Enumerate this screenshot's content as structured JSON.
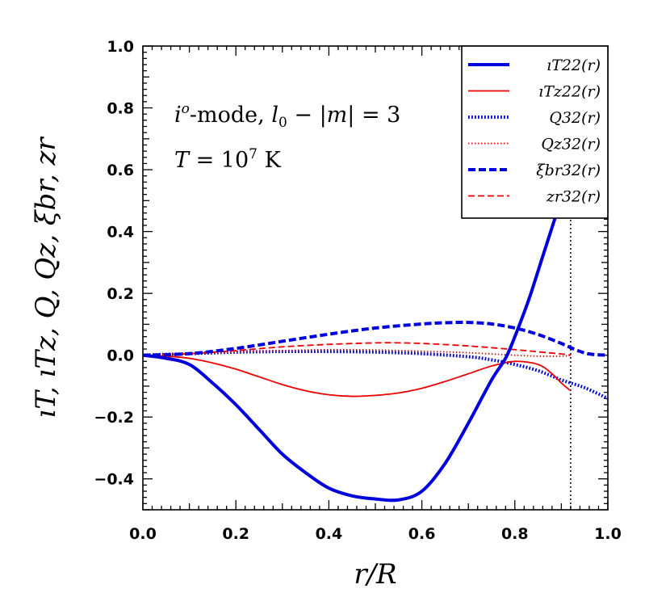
{
  "chart_data": {
    "type": "line",
    "xlabel": "r/R",
    "ylabel": "ıT, ıTz, Q, Qz, ξbr, zr",
    "xlim": [
      0.0,
      1.0
    ],
    "ylim": [
      -0.5,
      1.0
    ],
    "x_ticks": [
      "0.0",
      "0.2",
      "0.4",
      "0.6",
      "0.8",
      "1.0"
    ],
    "y_ticks": [
      "−0.4",
      "−0.2",
      "0.0",
      "0.2",
      "0.4",
      "0.6",
      "0.8",
      "1.0"
    ],
    "annotations": [
      "i^o-mode, l0 − |m| = 3",
      "T = 10^7 K"
    ],
    "vertical_line_x": 0.92,
    "legend_position": "top-right",
    "grid": false,
    "series": [
      {
        "name": "ıT22(r)",
        "color": "#0000dd",
        "style": "solid",
        "weight": "thick",
        "x": [
          0.0,
          0.05,
          0.1,
          0.15,
          0.2,
          0.25,
          0.3,
          0.35,
          0.4,
          0.45,
          0.5,
          0.55,
          0.6,
          0.65,
          0.7,
          0.75,
          0.78,
          0.8,
          0.83,
          0.86,
          0.89
        ],
        "y": [
          0.0,
          -0.01,
          -0.03,
          -0.09,
          -0.16,
          -0.24,
          -0.32,
          -0.38,
          -0.43,
          -0.455,
          -0.465,
          -0.468,
          -0.44,
          -0.35,
          -0.22,
          -0.08,
          -0.01,
          0.06,
          0.18,
          0.32,
          0.46
        ]
      },
      {
        "name": "ıTz22(r)",
        "color": "#ee0000",
        "style": "solid",
        "weight": "thin",
        "x": [
          0.0,
          0.05,
          0.1,
          0.15,
          0.2,
          0.25,
          0.3,
          0.35,
          0.4,
          0.45,
          0.5,
          0.55,
          0.6,
          0.65,
          0.7,
          0.75,
          0.8,
          0.85,
          0.88,
          0.9,
          0.92
        ],
        "y": [
          0.0,
          -0.003,
          -0.01,
          -0.025,
          -0.045,
          -0.07,
          -0.095,
          -0.115,
          -0.128,
          -0.133,
          -0.13,
          -0.122,
          -0.107,
          -0.085,
          -0.06,
          -0.035,
          -0.02,
          -0.03,
          -0.06,
          -0.09,
          -0.115
        ]
      },
      {
        "name": "Q32(r)",
        "color": "#0000dd",
        "style": "dotted",
        "weight": "thick",
        "x": [
          0.0,
          0.1,
          0.2,
          0.3,
          0.4,
          0.5,
          0.6,
          0.7,
          0.75,
          0.8,
          0.85,
          0.9,
          0.95,
          1.0
        ],
        "y": [
          0.0,
          0.005,
          0.01,
          0.012,
          0.012,
          0.01,
          0.005,
          -0.005,
          -0.015,
          -0.03,
          -0.05,
          -0.08,
          -0.105,
          -0.14
        ]
      },
      {
        "name": "Qz32(r)",
        "color": "#ee0000",
        "style": "dotted",
        "weight": "thin",
        "x": [
          0.0,
          0.1,
          0.2,
          0.3,
          0.4,
          0.5,
          0.6,
          0.7,
          0.8,
          0.85,
          0.9,
          0.92
        ],
        "y": [
          0.0,
          0.005,
          0.01,
          0.015,
          0.018,
          0.017,
          0.013,
          0.008,
          0.0,
          -0.003,
          -0.003,
          0.0
        ]
      },
      {
        "name": "ξbr32(r)",
        "color": "#0000dd",
        "style": "dashed",
        "weight": "thick",
        "x": [
          0.0,
          0.1,
          0.2,
          0.3,
          0.4,
          0.5,
          0.6,
          0.65,
          0.7,
          0.75,
          0.8,
          0.85,
          0.9,
          0.93,
          0.96,
          1.0
        ],
        "y": [
          0.0,
          0.005,
          0.022,
          0.045,
          0.068,
          0.088,
          0.101,
          0.105,
          0.106,
          0.101,
          0.088,
          0.067,
          0.038,
          0.018,
          0.004,
          0.0
        ]
      },
      {
        "name": "zr32(r)",
        "color": "#ee0000",
        "style": "dashed",
        "weight": "thin",
        "x": [
          0.0,
          0.1,
          0.2,
          0.3,
          0.4,
          0.5,
          0.55,
          0.6,
          0.7,
          0.8,
          0.85,
          0.9,
          0.92
        ],
        "y": [
          0.0,
          0.005,
          0.015,
          0.027,
          0.035,
          0.04,
          0.04,
          0.038,
          0.03,
          0.018,
          0.011,
          0.004,
          0.0
        ]
      }
    ]
  }
}
